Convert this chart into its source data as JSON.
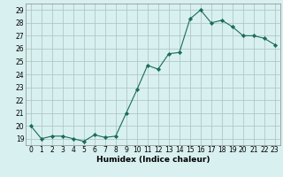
{
  "x": [
    0,
    1,
    2,
    3,
    4,
    5,
    6,
    7,
    8,
    9,
    10,
    11,
    12,
    13,
    14,
    15,
    16,
    17,
    18,
    19,
    20,
    21,
    22,
    23
  ],
  "y": [
    20,
    19,
    19.2,
    19.2,
    19,
    18.8,
    19.3,
    19.1,
    19.2,
    21.0,
    22.8,
    24.7,
    24.4,
    25.6,
    25.7,
    28.3,
    29.0,
    28.0,
    28.2,
    27.7,
    27.0,
    27.0,
    26.8,
    26.3
  ],
  "line_color": "#1a6b5a",
  "marker": "D",
  "marker_size": 2.2,
  "bg_color": "#d8f0f0",
  "grid_color": "#b0c8c8",
  "xlabel": "Humidex (Indice chaleur)",
  "ylim": [
    18.5,
    29.5
  ],
  "xlim": [
    -0.5,
    23.5
  ],
  "yticks": [
    19,
    20,
    21,
    22,
    23,
    24,
    25,
    26,
    27,
    28,
    29
  ],
  "xticks": [
    0,
    1,
    2,
    3,
    4,
    5,
    6,
    7,
    8,
    9,
    10,
    11,
    12,
    13,
    14,
    15,
    16,
    17,
    18,
    19,
    20,
    21,
    22,
    23
  ],
  "tick_fontsize": 5.5,
  "label_fontsize": 6.5
}
